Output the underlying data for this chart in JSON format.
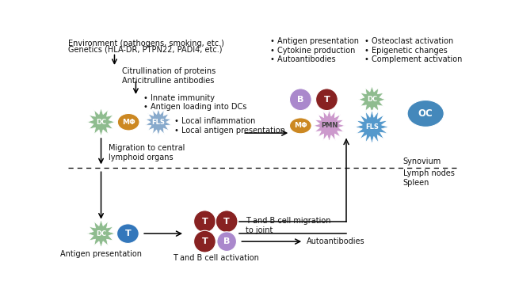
{
  "bg_color": "#ffffff",
  "text_color": "#111111",
  "top_line1": "Environment (pathogens, smoking, etc.)",
  "top_line2": "Genetics (HLA-DR, PTPN22, PADI4, etc.)",
  "citrullination_text": "Citrullination of proteins\nAnticitrulline antibodies",
  "innate_bullets": "• Innate immunity\n• Antigen loading into DCs",
  "local_bullets": "• Local inflammation\n• Local antigen presentation",
  "antigen_bullets": "• Antigen presentation\n• Cytokine production\n• Autoantibodies",
  "osteo_bullets": "• Osteoclast activation\n• Epigenetic changes\n• Complement activation",
  "migration_text": "Migration to central\nlymphoid organs",
  "synovium_text": "Synovium",
  "lymph_text": "Lymph nodes\nSpleen",
  "tb_migration_text": "T and B cell migration\nto joint",
  "autoantibodies_text": "Autoantibodies",
  "antigen_pres_label": "Antigen presentation",
  "tb_activation_label": "T and B cell activation",
  "dc_color": "#8fbc8f",
  "dc_inner_color": "#6a9e6a",
  "mphi_color": "#cc8822",
  "fls_color_top": "#88aacc",
  "fls_color_right": "#5599cc",
  "b_cell_color": "#aa88cc",
  "t_cell_color": "#882222",
  "t_blue_color": "#3377bb",
  "pmn_color": "#cc99cc",
  "oc_color": "#4488bb",
  "arrow_color": "#222222"
}
